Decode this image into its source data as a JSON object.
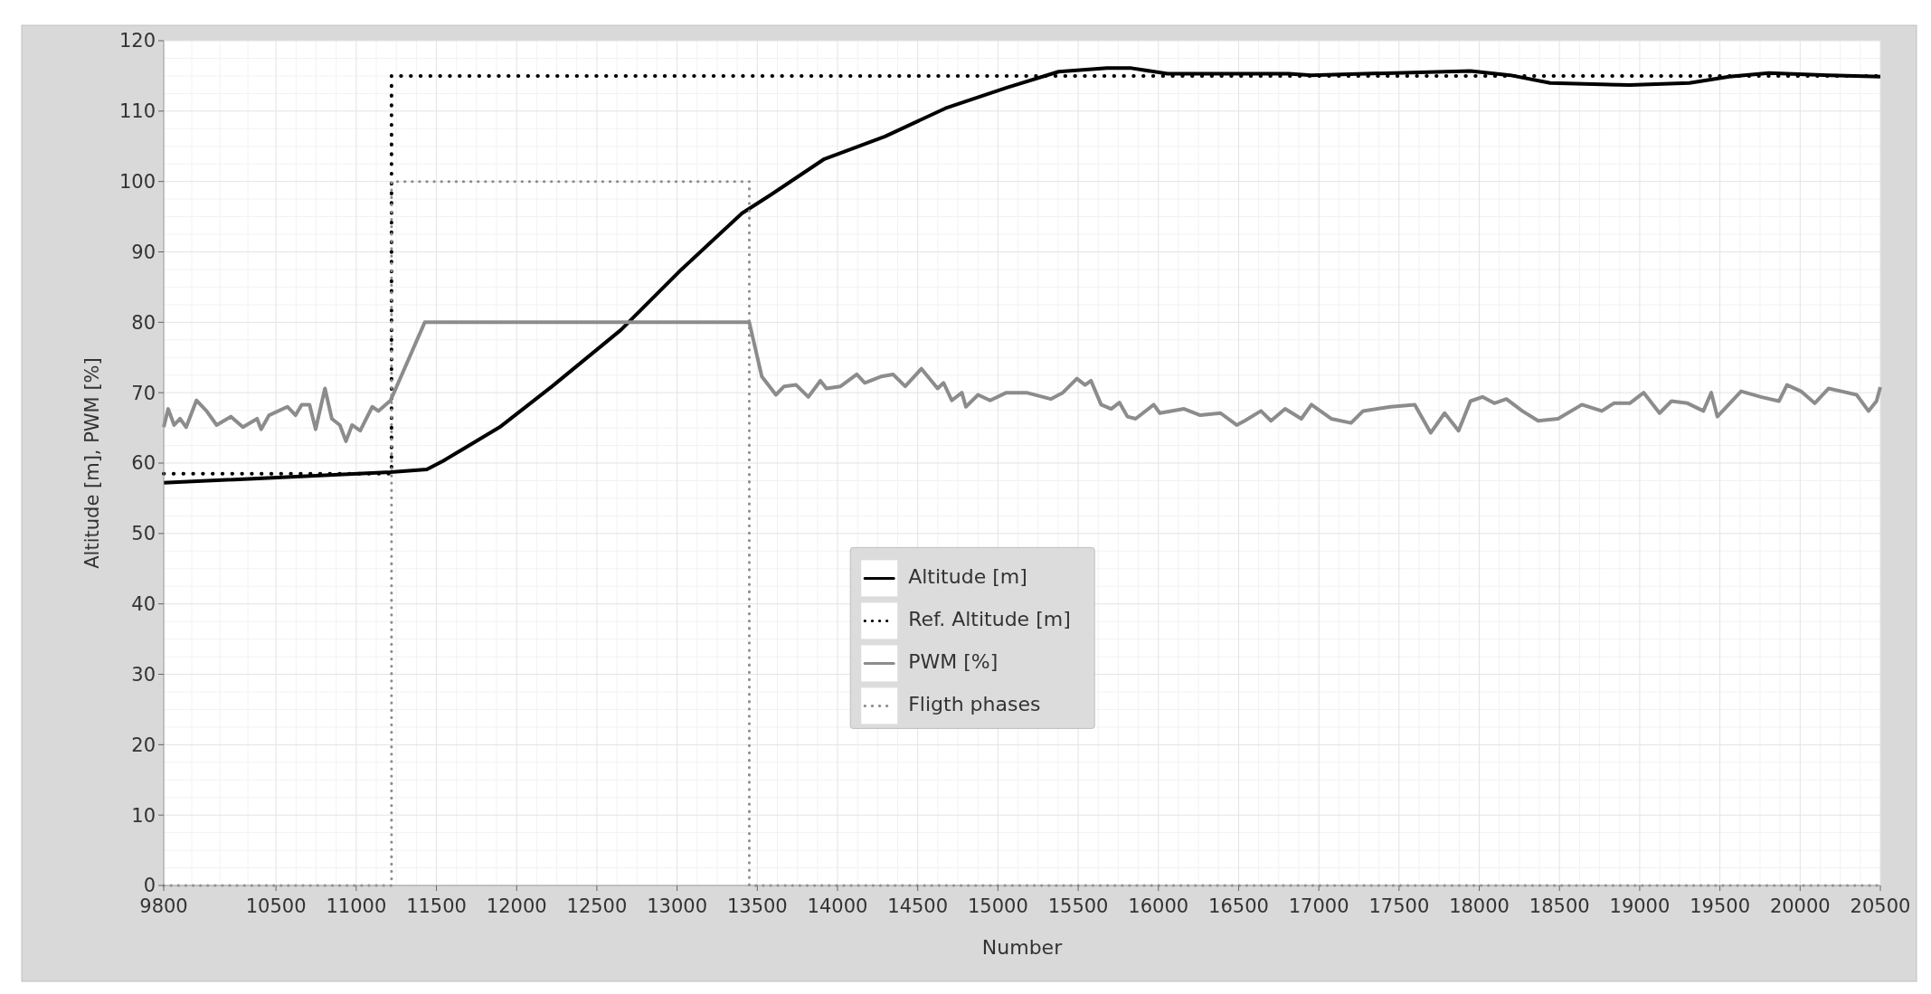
{
  "chart_data": {
    "type": "line",
    "xlabel": "Number",
    "ylabel": "Altitude [m], PWM [%]",
    "xlim": [
      9800,
      20500
    ],
    "xticks": [
      9800,
      10500,
      11000,
      11500,
      12000,
      12500,
      13000,
      13500,
      14000,
      14500,
      15000,
      15500,
      16000,
      16500,
      17000,
      17500,
      18000,
      18500,
      19000,
      19500,
      20000,
      20500
    ],
    "ylim": [
      0,
      120
    ],
    "yticks": [
      0,
      10,
      20,
      30,
      40,
      50,
      60,
      70,
      80,
      90,
      100,
      110,
      120
    ],
    "grid": true,
    "legend": "center",
    "series": [
      {
        "name": "Altitude [m]",
        "color": "#000000",
        "line_style": "solid",
        "x": [
          9800,
          11214,
          11440,
          11541,
          11894,
          12221,
          12649,
          13027,
          13405,
          13583,
          13918,
          14296,
          14673,
          15051,
          15378,
          15679,
          15832,
          16057,
          16813,
          16953,
          17945,
          18193,
          18442,
          18938,
          19310,
          19558,
          19806,
          20178,
          20500
        ],
        "values": [
          57.2,
          58.7,
          59.1,
          60.3,
          65.1,
          70.9,
          78.9,
          87.5,
          95.5,
          98.1,
          103.2,
          106.4,
          110.4,
          113.3,
          115.6,
          116.1,
          116.1,
          115.3,
          115.3,
          115.1,
          115.7,
          115.1,
          114,
          113.7,
          114,
          114.9,
          115.4,
          115.1,
          114.9
        ]
      },
      {
        "name": "Ref. Altitude [m]",
        "color": "#000000",
        "line_style": "dotted",
        "x": [
          9800,
          11220,
          11220,
          20500
        ],
        "values": [
          58.5,
          58.5,
          115,
          115
        ]
      },
      {
        "name": "PWM [%]",
        "color": "#8c8c8c",
        "line_style": "solid",
        "x": [
          9800,
          9828,
          9865,
          9902,
          9940,
          10004,
          10067,
          10130,
          10218,
          10294,
          10382,
          10407,
          10457,
          10571,
          10622,
          10660,
          10709,
          10747,
          10805,
          10848,
          10898,
          10936,
          10974,
          11025,
          11100,
          11138,
          11214,
          11427,
          13450,
          13528,
          13616,
          13667,
          13742,
          13818,
          13893,
          13931,
          14019,
          14120,
          14170,
          14271,
          14346,
          14422,
          14523,
          14624,
          14661,
          14712,
          14775,
          14800,
          14876,
          14951,
          15052,
          15178,
          15329,
          15404,
          15492,
          15543,
          15580,
          15643,
          15706,
          15757,
          15807,
          15858,
          15971,
          16009,
          16160,
          16261,
          16387,
          16488,
          16538,
          16639,
          16702,
          16790,
          16891,
          16954,
          17077,
          17201,
          17276,
          17449,
          17598,
          17697,
          17784,
          17871,
          17945,
          18020,
          18094,
          18169,
          18268,
          18367,
          18491,
          18640,
          18764,
          18839,
          18938,
          19025,
          19124,
          19198,
          19298,
          19397,
          19446,
          19484,
          19632,
          19756,
          19868,
          19918,
          20005,
          20091,
          20178,
          20352,
          20426,
          20476,
          20500
        ],
        "values": [
          65.1,
          67.7,
          65.4,
          66.3,
          65.1,
          68.9,
          67.4,
          65.4,
          66.6,
          65.1,
          66.3,
          64.8,
          66.8,
          68,
          66.8,
          68.3,
          68.3,
          64.8,
          70.6,
          66.3,
          65.4,
          63.1,
          65.4,
          64.6,
          68,
          67.4,
          68.9,
          80,
          80,
          72.3,
          69.7,
          70.9,
          71.1,
          69.4,
          71.7,
          70.6,
          70.9,
          72.6,
          71.4,
          72.3,
          72.6,
          70.9,
          73.4,
          70.6,
          71.4,
          68.9,
          70,
          68,
          69.7,
          68.9,
          70,
          70,
          69.1,
          70,
          72,
          71.1,
          71.7,
          68.3,
          67.7,
          68.6,
          66.6,
          66.3,
          68.3,
          67.1,
          67.7,
          66.8,
          67.1,
          65.4,
          66,
          67.4,
          66,
          67.7,
          66.3,
          68.3,
          66.3,
          65.7,
          67.4,
          68,
          68.3,
          64.3,
          67.1,
          64.6,
          68.8,
          69.4,
          68.5,
          69.1,
          67.4,
          66,
          66.3,
          68.3,
          67.4,
          68.5,
          68.5,
          70,
          67.1,
          68.8,
          68.5,
          67.4,
          70,
          66.6,
          70.2,
          69.4,
          68.8,
          71.1,
          70.2,
          68.5,
          70.6,
          69.7,
          67.4,
          68.8,
          70.8
        ]
      },
      {
        "name": "Fligth phases",
        "color": "#8c8c8c",
        "line_style": "dotted",
        "x": [
          9800,
          11220,
          11220,
          13450,
          13450,
          20500
        ],
        "values": [
          0,
          0,
          100,
          100,
          0,
          0
        ]
      }
    ]
  }
}
